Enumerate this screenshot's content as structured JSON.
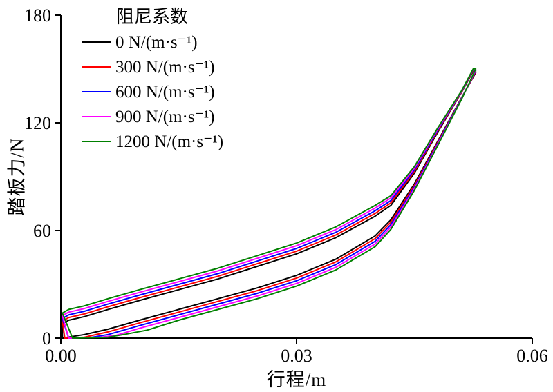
{
  "chart_data": {
    "type": "line",
    "title": "",
    "xlabel": "行程/m",
    "ylabel": "踏板力/N",
    "xlim": [
      0,
      0.06
    ],
    "ylim": [
      0,
      180
    ],
    "grid": false,
    "legend": {
      "title": "阻尼系数",
      "position": "top-left"
    },
    "xticks": [
      {
        "v": 0,
        "label": "0.00"
      },
      {
        "v": 0.03,
        "label": "0.03"
      },
      {
        "v": 0.06,
        "label": "0.06"
      }
    ],
    "yticks": [
      {
        "v": 0,
        "label": "0"
      },
      {
        "v": 60,
        "label": "60"
      },
      {
        "v": 120,
        "label": "120"
      },
      {
        "v": 180,
        "label": "180"
      }
    ],
    "series": [
      {
        "name": "0 N/(m·s⁻¹)",
        "color": "#000000",
        "closed": true,
        "points": [
          [
            0.0002,
            0
          ],
          [
            0.003,
            2
          ],
          [
            0.006,
            5
          ],
          [
            0.01,
            10
          ],
          [
            0.015,
            16
          ],
          [
            0.02,
            22
          ],
          [
            0.025,
            28
          ],
          [
            0.03,
            35
          ],
          [
            0.035,
            44
          ],
          [
            0.04,
            57
          ],
          [
            0.042,
            66
          ],
          [
            0.045,
            86
          ],
          [
            0.048,
            110
          ],
          [
            0.051,
            134
          ],
          [
            0.0528,
            148
          ],
          [
            0.0525,
            149
          ],
          [
            0.051,
            137
          ],
          [
            0.048,
            115
          ],
          [
            0.045,
            92
          ],
          [
            0.042,
            74
          ],
          [
            0.04,
            68
          ],
          [
            0.035,
            56
          ],
          [
            0.03,
            47
          ],
          [
            0.025,
            40
          ],
          [
            0.02,
            33
          ],
          [
            0.015,
            27
          ],
          [
            0.01,
            21
          ],
          [
            0.006,
            16
          ],
          [
            0.003,
            12
          ],
          [
            0.001,
            10
          ],
          [
            0.0002,
            8
          ]
        ]
      },
      {
        "name": "300 N/(m·s⁻¹)",
        "color": "#ff0000",
        "closed": true,
        "points": [
          [
            0.0005,
            0
          ],
          [
            0.003,
            0.5
          ],
          [
            0.006,
            3.5
          ],
          [
            0.01,
            8.5
          ],
          [
            0.015,
            14.5
          ],
          [
            0.02,
            20.5
          ],
          [
            0.025,
            26.5
          ],
          [
            0.03,
            33.5
          ],
          [
            0.035,
            42.5
          ],
          [
            0.04,
            55.5
          ],
          [
            0.042,
            64.7
          ],
          [
            0.045,
            85.1
          ],
          [
            0.048,
            109.4
          ],
          [
            0.051,
            133.8
          ],
          [
            0.0528,
            148.5
          ],
          [
            0.0525,
            149.5
          ],
          [
            0.051,
            137.2
          ],
          [
            0.048,
            115.6
          ],
          [
            0.045,
            92.9
          ],
          [
            0.042,
            75.4
          ],
          [
            0.04,
            69.5
          ],
          [
            0.035,
            57.5
          ],
          [
            0.03,
            48.5
          ],
          [
            0.025,
            41.5
          ],
          [
            0.02,
            34.5
          ],
          [
            0.015,
            28.5
          ],
          [
            0.01,
            22.5
          ],
          [
            0.006,
            17.5
          ],
          [
            0.003,
            13.5
          ],
          [
            0.001,
            11.5
          ],
          [
            0.0002,
            9.5
          ]
        ]
      },
      {
        "name": "600 N/(m·s⁻¹)",
        "color": "#0000ff",
        "closed": true,
        "points": [
          [
            0.001,
            0
          ],
          [
            0.004,
            0.5
          ],
          [
            0.006,
            2
          ],
          [
            0.01,
            7
          ],
          [
            0.015,
            13
          ],
          [
            0.02,
            19
          ],
          [
            0.025,
            25
          ],
          [
            0.03,
            32
          ],
          [
            0.035,
            41
          ],
          [
            0.04,
            54
          ],
          [
            0.042,
            63.3
          ],
          [
            0.045,
            84.2
          ],
          [
            0.048,
            108.8
          ],
          [
            0.051,
            133.6
          ],
          [
            0.0528,
            149
          ],
          [
            0.0525,
            149.8
          ],
          [
            0.051,
            137.5
          ],
          [
            0.048,
            116.2
          ],
          [
            0.045,
            93.8
          ],
          [
            0.042,
            76.7
          ],
          [
            0.04,
            71
          ],
          [
            0.035,
            59
          ],
          [
            0.03,
            50
          ],
          [
            0.025,
            43
          ],
          [
            0.02,
            36
          ],
          [
            0.015,
            30
          ],
          [
            0.01,
            24
          ],
          [
            0.006,
            19
          ],
          [
            0.003,
            15
          ],
          [
            0.001,
            13
          ],
          [
            0.0002,
            11
          ]
        ]
      },
      {
        "name": "900 N/(m·s⁻¹)",
        "color": "#ff00ff",
        "closed": true,
        "points": [
          [
            0.001,
            0
          ],
          [
            0.005,
            0.5
          ],
          [
            0.007,
            1.5
          ],
          [
            0.01,
            5.5
          ],
          [
            0.015,
            11.5
          ],
          [
            0.02,
            17.5
          ],
          [
            0.025,
            23.5
          ],
          [
            0.03,
            30.5
          ],
          [
            0.035,
            39.5
          ],
          [
            0.04,
            52.5
          ],
          [
            0.042,
            62
          ],
          [
            0.045,
            83.3
          ],
          [
            0.048,
            108.2
          ],
          [
            0.051,
            133.3
          ],
          [
            0.0528,
            149.5
          ],
          [
            0.0525,
            150
          ],
          [
            0.051,
            137.7
          ],
          [
            0.048,
            116.8
          ],
          [
            0.045,
            94.7
          ],
          [
            0.042,
            78.1
          ],
          [
            0.04,
            72.5
          ],
          [
            0.035,
            60.5
          ],
          [
            0.03,
            51.5
          ],
          [
            0.025,
            44.5
          ],
          [
            0.02,
            37.5
          ],
          [
            0.015,
            31.5
          ],
          [
            0.01,
            25.5
          ],
          [
            0.006,
            20.5
          ],
          [
            0.003,
            16.5
          ],
          [
            0.001,
            14.5
          ],
          [
            0.0002,
            12.5
          ]
        ]
      },
      {
        "name": "1200 N/(m·s⁻¹)",
        "color": "#008000",
        "closed": true,
        "points": [
          [
            0.0015,
            0
          ],
          [
            0.006,
            0.5
          ],
          [
            0.008,
            2
          ],
          [
            0.011,
            4.5
          ],
          [
            0.015,
            10
          ],
          [
            0.02,
            16
          ],
          [
            0.025,
            22
          ],
          [
            0.03,
            29
          ],
          [
            0.035,
            38
          ],
          [
            0.04,
            51
          ],
          [
            0.042,
            60.6
          ],
          [
            0.045,
            82.4
          ],
          [
            0.048,
            107.6
          ],
          [
            0.051,
            133.1
          ],
          [
            0.0528,
            150
          ],
          [
            0.0525,
            150.2
          ],
          [
            0.051,
            137.9
          ],
          [
            0.048,
            117.4
          ],
          [
            0.045,
            95.6
          ],
          [
            0.042,
            79.4
          ],
          [
            0.04,
            74
          ],
          [
            0.035,
            62
          ],
          [
            0.03,
            53
          ],
          [
            0.025,
            46
          ],
          [
            0.02,
            39
          ],
          [
            0.015,
            33
          ],
          [
            0.01,
            27
          ],
          [
            0.006,
            22
          ],
          [
            0.003,
            18
          ],
          [
            0.001,
            16
          ],
          [
            0.0002,
            14
          ]
        ]
      }
    ]
  }
}
